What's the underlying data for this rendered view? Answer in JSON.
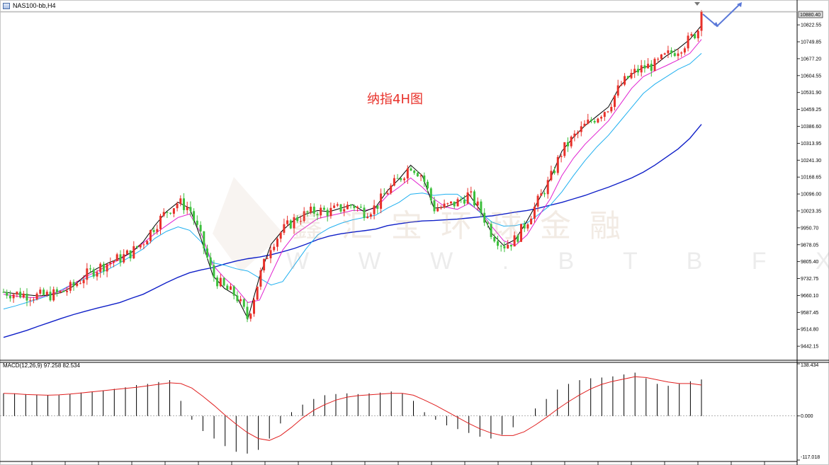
{
  "header": {
    "symbol": "NAS100-bb,H4"
  },
  "title_text": "纳指4H图",
  "watermark": {
    "cn": "鑫汇宝环球金融",
    "url": "W W W . B T B F X . N E T"
  },
  "current_price": "10880.40",
  "macd_header": "MACD(12,26,9) 97.258 82.534",
  "colors": {
    "up": "#e8312a",
    "down": "#3cbf3c",
    "ma_fast": "#000000",
    "ma_mid": "#e020d0",
    "ma_slow": "#20b0f0",
    "ma_long": "#1020c8",
    "macd_signal": "#e02020",
    "arrow": "#5a78d8"
  },
  "chart_data": [
    {
      "type": "line",
      "subtype": "candlestick",
      "symbol": "NAS100-bb",
      "timeframe": "H4",
      "y_ticks": [
        "10822.55",
        "10749.85",
        "10677.20",
        "10604.55",
        "10531.90",
        "10459.25",
        "10386.60",
        "10313.95",
        "10241.30",
        "10168.65",
        "10096.00",
        "10023.35",
        "9950.70",
        "9878.05",
        "9805.40",
        "9732.75",
        "9660.10",
        "9587.45",
        "9514.80",
        "9442.15"
      ],
      "ylim": [
        9400,
        10905
      ],
      "last_price": 10880.4,
      "series": [
        {
          "name": "MA fast",
          "values": [
            9675,
            9668,
            9663,
            9658,
            9662,
            9673,
            9700,
            9745,
            9775,
            9800,
            9820,
            9845,
            9890,
            9960,
            10020,
            10060,
            10035,
            9900,
            9745,
            9690,
            9660,
            9560,
            9740,
            9880,
            9940,
            9985,
            10010,
            10025,
            10020,
            10035,
            10050,
            10020,
            10040,
            10110,
            10160,
            10220,
            10175,
            10035,
            10040,
            10060,
            10095,
            10025,
            9925,
            9875,
            9900,
            9980,
            10070,
            10160,
            10280,
            10340,
            10390,
            10430,
            10470,
            10560,
            10610,
            10640,
            10650,
            10690,
            10720,
            10760,
            10820
          ]
        },
        {
          "name": "MA mid",
          "values": [
            9665,
            9658,
            9652,
            9650,
            9665,
            9680,
            9710,
            9740,
            9762,
            9790,
            9815,
            9845,
            9885,
            9925,
            9960,
            9995,
            10010,
            9925,
            9790,
            9735,
            9690,
            9630,
            9640,
            9750,
            9855,
            9920,
            9955,
            9990,
            10002,
            10013,
            10025,
            10025,
            10035,
            10090,
            10125,
            10165,
            10125,
            10075,
            10040,
            10030,
            10055,
            10020,
            9955,
            9895,
            9875,
            9920,
            10000,
            10075,
            10175,
            10250,
            10310,
            10360,
            10410,
            10480,
            10550,
            10600,
            10625,
            10648,
            10672,
            10700,
            10760
          ]
        },
        {
          "name": "MA slow",
          "values": [
            9602,
            9615,
            9630,
            9645,
            9662,
            9685,
            9710,
            9732,
            9750,
            9772,
            9800,
            9830,
            9860,
            9905,
            9935,
            9955,
            9940,
            9890,
            9800,
            9790,
            9775,
            9765,
            9735,
            9705,
            9720,
            9790,
            9860,
            9920,
            9950,
            9970,
            9985,
            9995,
            10005,
            10035,
            10060,
            10095,
            10100,
            10090,
            10095,
            10095,
            10060,
            10015,
            9975,
            9958,
            9960,
            9972,
            10008,
            10048,
            10105,
            10175,
            10240,
            10298,
            10348,
            10408,
            10468,
            10528,
            10568,
            10600,
            10632,
            10655,
            10700
          ]
        },
        {
          "name": "MA long",
          "values": [
            9480,
            9495,
            9510,
            9528,
            9545,
            9562,
            9578,
            9592,
            9605,
            9617,
            9630,
            9648,
            9665,
            9690,
            9715,
            9738,
            9758,
            9770,
            9780,
            9795,
            9808,
            9818,
            9825,
            9835,
            9848,
            9862,
            9880,
            9900,
            9915,
            9925,
            9932,
            9938,
            9945,
            9960,
            9968,
            9975,
            9980,
            9982,
            9985,
            9988,
            9993,
            9998,
            10002,
            10010,
            10018,
            10025,
            10035,
            10048,
            10060,
            10075,
            10090,
            10108,
            10125,
            10145,
            10165,
            10190,
            10220,
            10255,
            10290,
            10335,
            10395
          ]
        }
      ]
    },
    {
      "type": "bar",
      "name": "MACD",
      "params": "(12,26,9)",
      "main": 97.258,
      "signal": 82.534,
      "y_ticks": [
        "138.434",
        "0.000",
        "-117.018"
      ],
      "ylim": [
        -117.018,
        138.434
      ],
      "series": [
        {
          "name": "histogram",
          "values": [
            60,
            60,
            58,
            56,
            55,
            55,
            58,
            62,
            65,
            68,
            72,
            76,
            82,
            85,
            90,
            95,
            40,
            -10,
            -40,
            -60,
            -80,
            -95,
            -100,
            -90,
            -60,
            -20,
            10,
            30,
            45,
            55,
            58,
            60,
            58,
            60,
            62,
            65,
            60,
            40,
            10,
            -10,
            -25,
            -35,
            -45,
            -55,
            -60,
            -50,
            -30,
            0,
            20,
            45,
            70,
            85,
            95,
            100,
            102,
            105,
            110,
            115,
            100,
            85,
            80,
            85,
            92,
            97
          ]
        },
        {
          "name": "signal",
          "values": [
            60,
            59,
            57,
            56,
            55,
            56,
            58,
            61,
            64,
            67,
            70,
            73,
            76,
            80,
            84,
            88,
            86,
            74,
            52,
            28,
            2,
            -22,
            -44,
            -60,
            -65,
            -52,
            -30,
            -5,
            15,
            30,
            42,
            50,
            54,
            56,
            58,
            60,
            60,
            55,
            42,
            28,
            12,
            -4,
            -20,
            -34,
            -45,
            -52,
            -52,
            -42,
            -24,
            -4,
            18,
            38,
            56,
            72,
            84,
            92,
            98,
            104,
            102,
            96,
            90,
            86,
            86,
            82
          ]
        }
      ]
    }
  ]
}
